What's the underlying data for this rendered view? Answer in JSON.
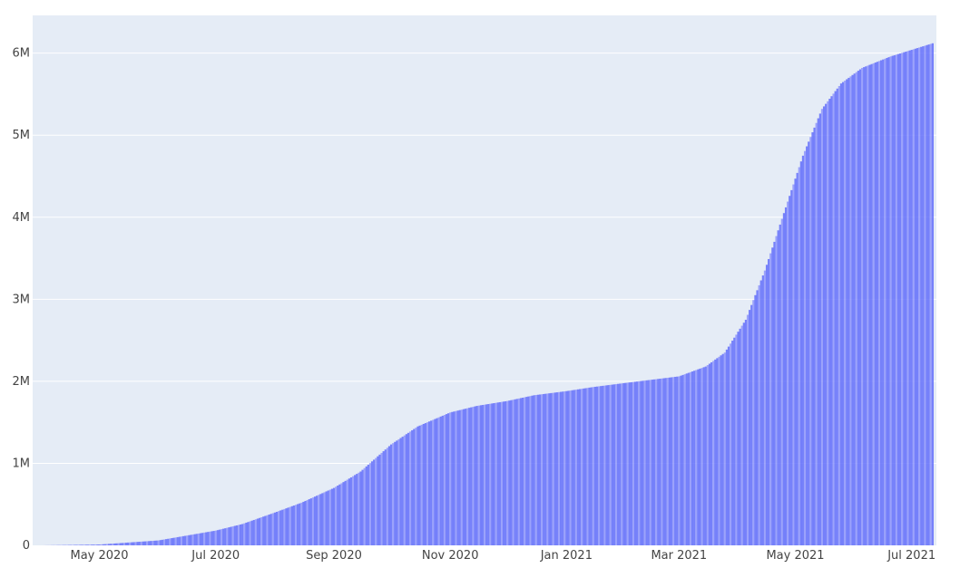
{
  "chart_data": {
    "type": "bar",
    "title": "",
    "xlabel": "",
    "ylabel": "",
    "colors": {
      "plot_bg": "#e5ecf6",
      "bar": "#636efa",
      "bar_light": "#8f97fc",
      "grid": "#ffffff",
      "tick_text": "#444444"
    },
    "grid": true,
    "legend": "none",
    "x_range": [
      "2020-03-27",
      "2021-07-14"
    ],
    "ylim": [
      0,
      6460000
    ],
    "yticks": [
      {
        "value": 0,
        "label": "0"
      },
      {
        "value": 1000000,
        "label": "1M"
      },
      {
        "value": 2000000,
        "label": "2M"
      },
      {
        "value": 3000000,
        "label": "3M"
      },
      {
        "value": 4000000,
        "label": "4M"
      },
      {
        "value": 5000000,
        "label": "5M"
      },
      {
        "value": 6000000,
        "label": "6M"
      }
    ],
    "xticks": [
      {
        "date": "2020-05-01",
        "label": "May 2020"
      },
      {
        "date": "2020-07-01",
        "label": "Jul 2020"
      },
      {
        "date": "2020-09-01",
        "label": "Sep 2020"
      },
      {
        "date": "2020-11-01",
        "label": "Nov 2020"
      },
      {
        "date": "2021-01-01",
        "label": "Jan 2021"
      },
      {
        "date": "2021-03-01",
        "label": "Mar 2021"
      },
      {
        "date": "2021-05-01",
        "label": "May 2021"
      },
      {
        "date": "2021-07-01",
        "label": "Jul 2021"
      }
    ],
    "series_anchor_points": [
      {
        "x": "2020-04-01",
        "y": 0
      },
      {
        "x": "2020-05-01",
        "y": 10000
      },
      {
        "x": "2020-06-01",
        "y": 60000
      },
      {
        "x": "2020-07-01",
        "y": 180000
      },
      {
        "x": "2020-07-15",
        "y": 260000
      },
      {
        "x": "2020-08-01",
        "y": 400000
      },
      {
        "x": "2020-08-15",
        "y": 520000
      },
      {
        "x": "2020-09-01",
        "y": 700000
      },
      {
        "x": "2020-09-15",
        "y": 900000
      },
      {
        "x": "2020-10-01",
        "y": 1230000
      },
      {
        "x": "2020-10-15",
        "y": 1450000
      },
      {
        "x": "2020-11-01",
        "y": 1620000
      },
      {
        "x": "2020-11-15",
        "y": 1700000
      },
      {
        "x": "2020-12-01",
        "y": 1760000
      },
      {
        "x": "2020-12-15",
        "y": 1830000
      },
      {
        "x": "2021-01-01",
        "y": 1880000
      },
      {
        "x": "2021-01-15",
        "y": 1930000
      },
      {
        "x": "2021-02-01",
        "y": 1980000
      },
      {
        "x": "2021-02-15",
        "y": 2020000
      },
      {
        "x": "2021-03-01",
        "y": 2060000
      },
      {
        "x": "2021-03-15",
        "y": 2180000
      },
      {
        "x": "2021-03-25",
        "y": 2350000
      },
      {
        "x": "2021-04-05",
        "y": 2750000
      },
      {
        "x": "2021-04-15",
        "y": 3350000
      },
      {
        "x": "2021-04-25",
        "y": 4050000
      },
      {
        "x": "2021-05-05",
        "y": 4750000
      },
      {
        "x": "2021-05-15",
        "y": 5320000
      },
      {
        "x": "2021-05-25",
        "y": 5630000
      },
      {
        "x": "2021-06-05",
        "y": 5820000
      },
      {
        "x": "2021-06-20",
        "y": 5960000
      },
      {
        "x": "2021-07-12",
        "y": 6120000
      }
    ]
  }
}
